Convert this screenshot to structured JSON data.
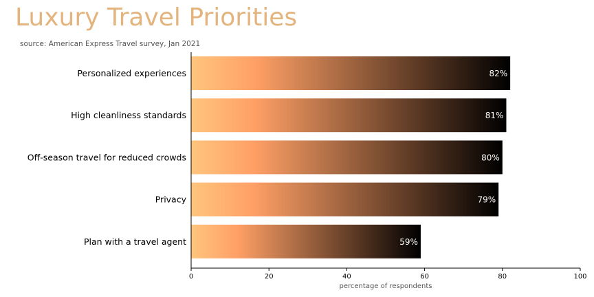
{
  "chart_data": {
    "type": "bar",
    "orientation": "horizontal",
    "title": "Luxury Travel Priorities",
    "subtitle": "source: American Express Travel survey, Jan 2021",
    "categories": [
      "Personalized experiences",
      "High cleanliness standards",
      "Off-season travel for reduced crowds",
      "Privacy",
      "Plan with a travel agent"
    ],
    "values": [
      82,
      81,
      80,
      79,
      59
    ],
    "value_labels": [
      "82%",
      "81%",
      "80%",
      "79%",
      "59%"
    ],
    "xlabel": "percentage of respondents",
    "ylabel": "",
    "xlim": [
      0,
      100
    ],
    "xticks": [
      "0",
      "20",
      "40",
      "60",
      "80",
      "100"
    ],
    "grid": false,
    "legend": "none",
    "colors": {
      "title": "#e3b47e",
      "gradient_start": "#ffc57d",
      "gradient_mid": "#ffa066",
      "gradient_end": "#000000",
      "value_text": "#ffffff"
    }
  }
}
